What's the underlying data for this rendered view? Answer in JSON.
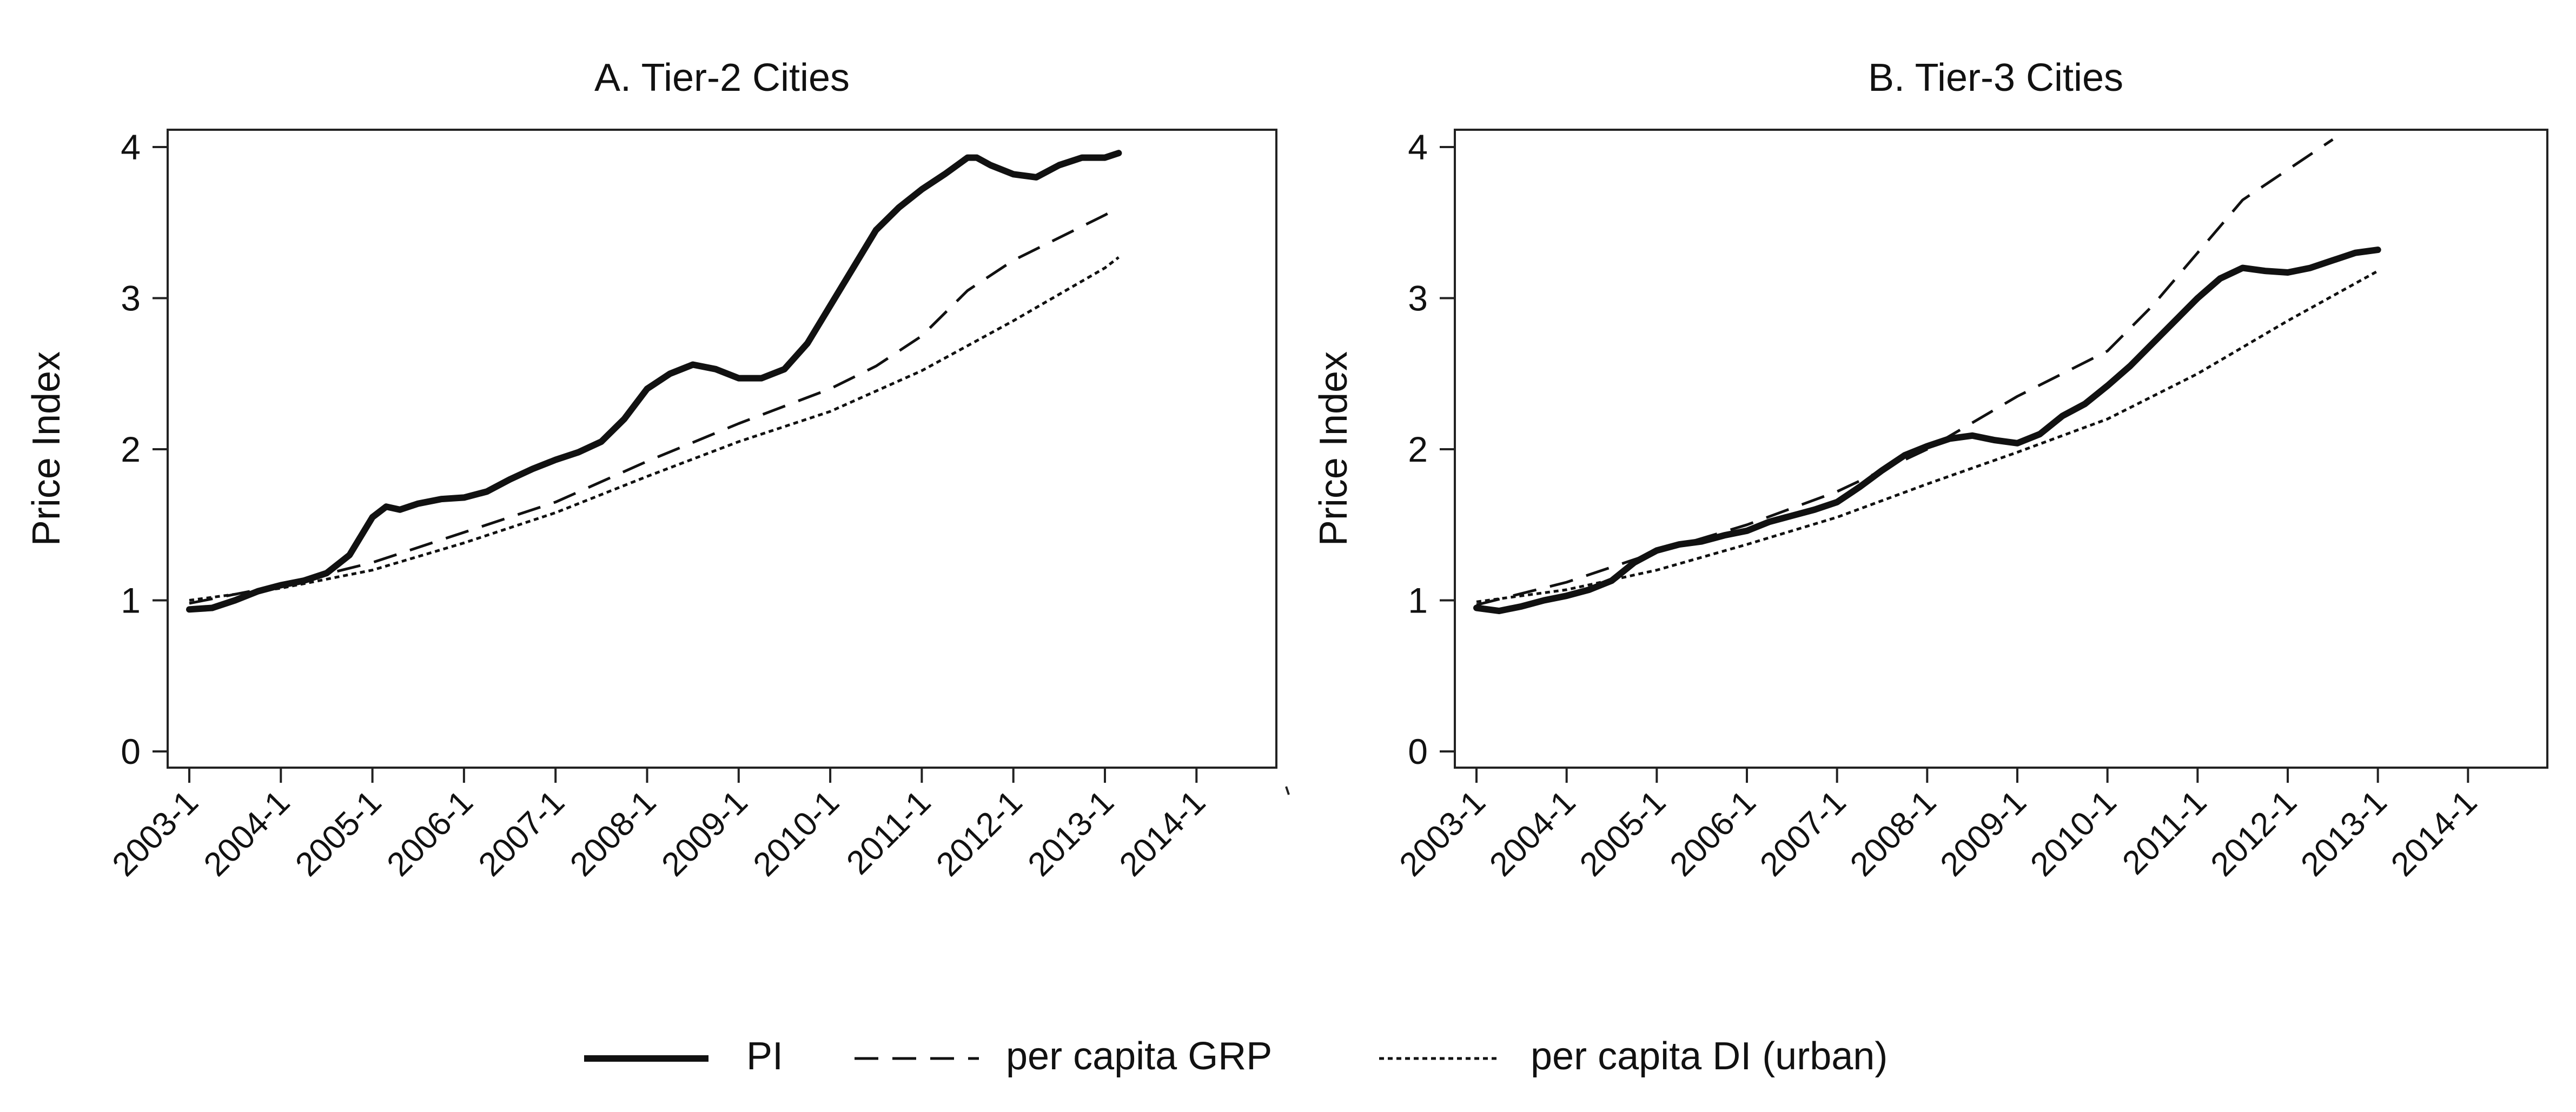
{
  "chart_data": [
    {
      "type": "line",
      "title": "A. Tier-2 Cities",
      "ylabel": "Price Index",
      "xlabel": "",
      "ylim": [
        0,
        4
      ],
      "yticks": [
        "0",
        "1",
        "2",
        "3",
        "4"
      ],
      "xlim": [
        2003.0,
        2014.4
      ],
      "xticks": [
        "2003-1",
        "2004-1",
        "2005-1",
        "2006-1",
        "2007-1",
        "2008-1",
        "2009-1",
        "2010-1",
        "2011-1",
        "2012-1",
        "2013-1",
        "2014-1"
      ],
      "series": [
        {
          "name": "PI",
          "style": "solid",
          "points": [
            [
              2003.0,
              0.94
            ],
            [
              2003.25,
              0.95
            ],
            [
              2003.5,
              1.0
            ],
            [
              2003.75,
              1.06
            ],
            [
              2004.0,
              1.1
            ],
            [
              2004.25,
              1.13
            ],
            [
              2004.5,
              1.18
            ],
            [
              2004.75,
              1.3
            ],
            [
              2005.0,
              1.55
            ],
            [
              2005.15,
              1.62
            ],
            [
              2005.3,
              1.6
            ],
            [
              2005.5,
              1.64
            ],
            [
              2005.75,
              1.67
            ],
            [
              2006.0,
              1.68
            ],
            [
              2006.25,
              1.72
            ],
            [
              2006.5,
              1.8
            ],
            [
              2006.75,
              1.87
            ],
            [
              2007.0,
              1.93
            ],
            [
              2007.25,
              1.98
            ],
            [
              2007.5,
              2.05
            ],
            [
              2007.75,
              2.2
            ],
            [
              2008.0,
              2.4
            ],
            [
              2008.25,
              2.5
            ],
            [
              2008.5,
              2.56
            ],
            [
              2008.75,
              2.53
            ],
            [
              2009.0,
              2.47
            ],
            [
              2009.25,
              2.47
            ],
            [
              2009.5,
              2.53
            ],
            [
              2009.75,
              2.7
            ],
            [
              2010.0,
              2.95
            ],
            [
              2010.25,
              3.2
            ],
            [
              2010.5,
              3.45
            ],
            [
              2010.75,
              3.6
            ],
            [
              2011.0,
              3.72
            ],
            [
              2011.25,
              3.82
            ],
            [
              2011.5,
              3.93
            ],
            [
              2011.6,
              3.93
            ],
            [
              2011.75,
              3.88
            ],
            [
              2012.0,
              3.82
            ],
            [
              2012.25,
              3.8
            ],
            [
              2012.5,
              3.88
            ],
            [
              2012.75,
              3.93
            ],
            [
              2013.0,
              3.93
            ],
            [
              2013.15,
              3.96
            ]
          ]
        },
        {
          "name": "per capita GRP",
          "style": "dashed",
          "points": [
            [
              2003.0,
              0.98
            ],
            [
              2004.0,
              1.1
            ],
            [
              2005.0,
              1.25
            ],
            [
              2006.0,
              1.45
            ],
            [
              2007.0,
              1.65
            ],
            [
              2008.0,
              1.92
            ],
            [
              2009.0,
              2.17
            ],
            [
              2010.0,
              2.4
            ],
            [
              2010.5,
              2.55
            ],
            [
              2011.0,
              2.75
            ],
            [
              2011.5,
              3.05
            ],
            [
              2012.0,
              3.25
            ],
            [
              2012.5,
              3.4
            ],
            [
              2013.0,
              3.55
            ],
            [
              2013.15,
              3.6
            ]
          ]
        },
        {
          "name": "per capita DI (urban)",
          "style": "dotted",
          "points": [
            [
              2003.0,
              1.0
            ],
            [
              2004.0,
              1.08
            ],
            [
              2005.0,
              1.2
            ],
            [
              2006.0,
              1.38
            ],
            [
              2007.0,
              1.58
            ],
            [
              2008.0,
              1.82
            ],
            [
              2009.0,
              2.05
            ],
            [
              2010.0,
              2.25
            ],
            [
              2011.0,
              2.52
            ],
            [
              2012.0,
              2.85
            ],
            [
              2013.0,
              3.2
            ],
            [
              2013.15,
              3.27
            ]
          ]
        }
      ]
    },
    {
      "type": "line",
      "title": "B. Tier-3 Cities",
      "ylabel": "Price Index",
      "xlabel": "",
      "ylim": [
        0,
        4
      ],
      "yticks": [
        "0",
        "1",
        "2",
        "3",
        "4"
      ],
      "xlim": [
        2003.0,
        2014.4
      ],
      "xticks": [
        "2003-1",
        "2004-1",
        "2005-1",
        "2006-1",
        "2007-1",
        "2008-1",
        "2009-1",
        "2010-1",
        "2011-1",
        "2012-1",
        "2013-1",
        "2014-1"
      ],
      "series": [
        {
          "name": "PI",
          "style": "solid",
          "points": [
            [
              2003.0,
              0.95
            ],
            [
              2003.25,
              0.93
            ],
            [
              2003.5,
              0.96
            ],
            [
              2003.75,
              1.0
            ],
            [
              2004.0,
              1.03
            ],
            [
              2004.25,
              1.07
            ],
            [
              2004.5,
              1.13
            ],
            [
              2004.75,
              1.25
            ],
            [
              2005.0,
              1.33
            ],
            [
              2005.25,
              1.37
            ],
            [
              2005.5,
              1.39
            ],
            [
              2005.75,
              1.43
            ],
            [
              2006.0,
              1.46
            ],
            [
              2006.25,
              1.52
            ],
            [
              2006.5,
              1.56
            ],
            [
              2006.75,
              1.6
            ],
            [
              2007.0,
              1.65
            ],
            [
              2007.25,
              1.75
            ],
            [
              2007.5,
              1.86
            ],
            [
              2007.75,
              1.96
            ],
            [
              2008.0,
              2.02
            ],
            [
              2008.25,
              2.07
            ],
            [
              2008.5,
              2.09
            ],
            [
              2008.75,
              2.06
            ],
            [
              2009.0,
              2.04
            ],
            [
              2009.25,
              2.1
            ],
            [
              2009.5,
              2.22
            ],
            [
              2009.75,
              2.3
            ],
            [
              2010.0,
              2.42
            ],
            [
              2010.25,
              2.55
            ],
            [
              2010.5,
              2.7
            ],
            [
              2010.75,
              2.85
            ],
            [
              2011.0,
              3.0
            ],
            [
              2011.25,
              3.13
            ],
            [
              2011.5,
              3.2
            ],
            [
              2011.75,
              3.18
            ],
            [
              2012.0,
              3.17
            ],
            [
              2012.25,
              3.2
            ],
            [
              2012.5,
              3.25
            ],
            [
              2012.75,
              3.3
            ],
            [
              2013.0,
              3.32
            ]
          ]
        },
        {
          "name": "per capita GRP",
          "style": "dashed",
          "points": [
            [
              2003.0,
              0.97
            ],
            [
              2004.0,
              1.12
            ],
            [
              2005.0,
              1.32
            ],
            [
              2006.0,
              1.5
            ],
            [
              2007.0,
              1.72
            ],
            [
              2008.0,
              2.0
            ],
            [
              2009.0,
              2.35
            ],
            [
              2009.5,
              2.5
            ],
            [
              2010.0,
              2.65
            ],
            [
              2010.5,
              2.95
            ],
            [
              2011.0,
              3.3
            ],
            [
              2011.5,
              3.65
            ],
            [
              2012.0,
              3.85
            ],
            [
              2012.5,
              4.05
            ]
          ]
        },
        {
          "name": "per capita DI (urban)",
          "style": "dotted",
          "points": [
            [
              2003.0,
              0.99
            ],
            [
              2004.0,
              1.07
            ],
            [
              2005.0,
              1.2
            ],
            [
              2006.0,
              1.37
            ],
            [
              2007.0,
              1.55
            ],
            [
              2008.0,
              1.77
            ],
            [
              2009.0,
              1.98
            ],
            [
              2010.0,
              2.2
            ],
            [
              2011.0,
              2.5
            ],
            [
              2012.0,
              2.85
            ],
            [
              2013.0,
              3.18
            ]
          ]
        }
      ]
    }
  ],
  "legend": {
    "items": [
      {
        "label": "PI",
        "style": "solid"
      },
      {
        "label": "per capita GRP",
        "style": "dashed"
      },
      {
        "label": "per capita DI (urban)",
        "style": "dotted"
      }
    ]
  },
  "colors": {
    "line": "#111111",
    "frame": "#222222",
    "background": "#ffffff"
  }
}
